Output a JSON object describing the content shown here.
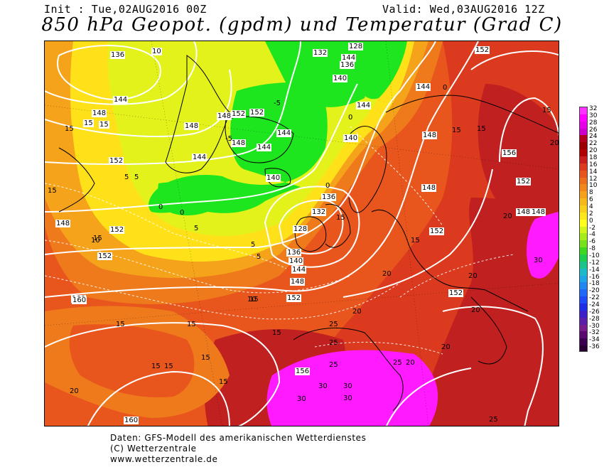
{
  "header": {
    "init": "Init : Tue,02AUG2016 00Z",
    "valid": "Valid: Wed,03AUG2016 12Z",
    "title": "850 hPa Geopot. (gpdm) und Temperatur (Grad C)"
  },
  "map": {
    "contour_labels_geopotential": [
      "136",
      "128",
      "132",
      "140",
      "144",
      "148",
      "152",
      "156",
      "160",
      "132",
      "140",
      "144",
      "148",
      "152",
      "128",
      "136",
      "140",
      "144",
      "148",
      "152",
      "156",
      "160",
      "152",
      "148",
      "136",
      "140",
      "148",
      "152",
      "156",
      "144",
      "136",
      "132",
      "148",
      "152",
      "148"
    ],
    "contour_labels_temperature": [
      "10",
      "15",
      "5",
      "0",
      "-5",
      "20",
      "25",
      "30",
      "15",
      "10",
      "5",
      "0",
      "-5",
      "20",
      "25",
      "30",
      "15",
      "20"
    ],
    "colors": {
      "magenta": "#ff1aff",
      "dark_red": "#c0201f",
      "red": "#dc3a1e",
      "orange_red": "#e8561e",
      "orange": "#ef7a1c",
      "light_orange": "#f5a31a",
      "yellow": "#ffe11a",
      "yellow_green": "#e3f21a",
      "green": "#1ee61e",
      "pale_green": "#9ef01e"
    }
  },
  "color_scale": {
    "labels": [
      "32",
      "30",
      "28",
      "26",
      "24",
      "22",
      "20",
      "18",
      "16",
      "14",
      "12",
      "10",
      "8",
      "6",
      "4",
      "2",
      "0",
      "-2",
      "-4",
      "-6",
      "-8",
      "-10",
      "-12",
      "-14",
      "-16",
      "-18",
      "-20",
      "-22",
      "-24",
      "-26",
      "-28",
      "-30",
      "-32",
      "-34",
      "-36"
    ],
    "colors": [
      "#ff33ff",
      "#ff00ff",
      "#e600e6",
      "#cc00cc",
      "#b3001f",
      "#9a0000",
      "#b00000",
      "#c81e1e",
      "#dc3c1e",
      "#e6551e",
      "#ee6e1e",
      "#f2871e",
      "#f5a01e",
      "#f7b81e",
      "#f9cf1e",
      "#fce61e",
      "#ffff1e",
      "#d2f51e",
      "#a5eb1e",
      "#78e11e",
      "#3cd71e",
      "#1ecd50",
      "#1ec38c",
      "#1eb9c8",
      "#1ea5e6",
      "#1e87f0",
      "#1e69f5",
      "#1e4bf5",
      "#1e2de6",
      "#3c1ec8",
      "#5a1eaa",
      "#781e8c",
      "#5a0a6e",
      "#3c0050",
      "#280032"
    ]
  },
  "footer": {
    "line1": "Daten: GFS-Modell des amerikanischen Wetterdienstes",
    "line2": "(C) Wetterzentrale",
    "line3": "www.wetterzentrale.de"
  }
}
